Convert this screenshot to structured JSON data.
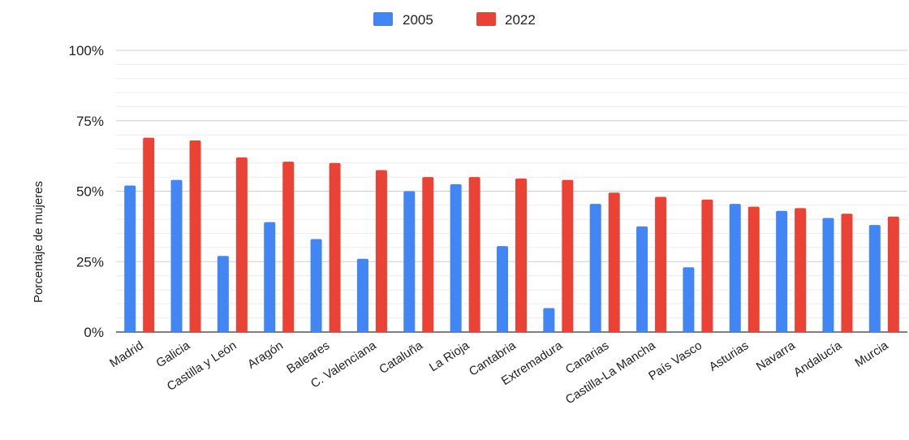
{
  "chart_data": {
    "type": "bar",
    "ylabel": "Porcentaje de mujeres",
    "xlabel": "",
    "ylim": [
      0,
      100
    ],
    "y_ticks": [
      "0%",
      "25%",
      "50%",
      "75%",
      "100%"
    ],
    "y_tick_values": [
      0,
      25,
      50,
      75,
      100
    ],
    "grid": true,
    "legend_position": "top",
    "categories": [
      "Madrid",
      "Galicia",
      "Castilla y León",
      "Aragón",
      "Baleares",
      "C. Valenciana",
      "Cataluña",
      "La Rioja",
      "Cantabria",
      "Extremadura",
      "Canarias",
      "Castilla-La Mancha",
      "País Vasco",
      "Asturias",
      "Navarra",
      "Andalucía",
      "Murcia"
    ],
    "series": [
      {
        "name": "2005",
        "color": "#4285f4",
        "values": [
          52,
          54,
          27,
          39,
          33,
          26,
          50,
          52.5,
          30.5,
          8.5,
          45.5,
          37.5,
          23,
          45.5,
          43,
          40.5,
          38
        ]
      },
      {
        "name": "2022",
        "color": "#ea4335",
        "values": [
          69,
          68,
          62,
          60.5,
          60,
          57.5,
          55,
          55,
          54.5,
          54,
          49.5,
          48,
          47,
          44.5,
          44,
          42,
          41
        ]
      }
    ]
  }
}
